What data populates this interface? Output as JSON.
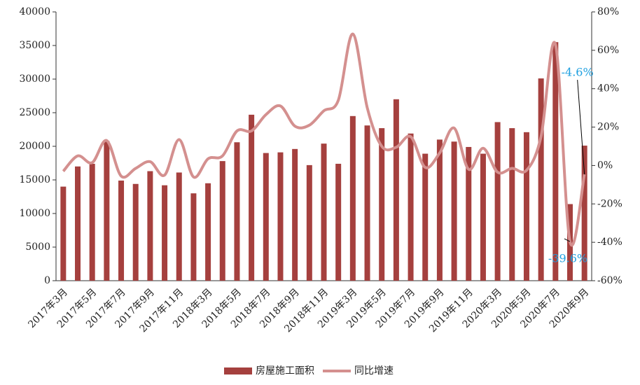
{
  "chart_data": {
    "type": "bar-line",
    "categories": [
      "2017年3月",
      null,
      "2017年5月",
      null,
      "2017年7月",
      null,
      "2017年9月",
      null,
      "2017年11月",
      null,
      "2018年3月",
      null,
      "2018年5月",
      null,
      "2018年7月",
      null,
      "2018年9月",
      null,
      "2018年11月",
      null,
      "2019年3月",
      null,
      "2019年5月",
      null,
      "2019年7月",
      null,
      "2019年9月",
      null,
      "2019年11月",
      null,
      "2020年3月",
      null,
      "2020年5月",
      null,
      "2020年7月",
      null,
      "2020年9月"
    ],
    "series": [
      {
        "name": "房屋施工面积",
        "type": "bar",
        "color": "#a5403e",
        "values": [
          14000,
          17000,
          17400,
          20800,
          14900,
          14400,
          16300,
          14200,
          16100,
          13000,
          14500,
          17800,
          20600,
          24700,
          19000,
          19100,
          19600,
          17200,
          20400,
          17400,
          24500,
          23100,
          22700,
          27000,
          21900,
          18900,
          21000,
          20700,
          19900,
          18900,
          23600,
          22700,
          22100,
          30100,
          35500,
          11400,
          20100
        ]
      },
      {
        "name": "同比增速",
        "type": "line",
        "axis": "y2",
        "color": "#d4908f",
        "values": [
          -3,
          5,
          1.5,
          13,
          -5.5,
          -1.5,
          2,
          -5,
          13.5,
          -6,
          3.5,
          5,
          18,
          18,
          26.5,
          31,
          20.5,
          21,
          28.5,
          34,
          68.5,
          30,
          10,
          9.5,
          15,
          -1,
          6.5,
          19.5,
          -2,
          9,
          -3.5,
          -1.5,
          -2.5,
          15,
          63,
          -39.6,
          -4.6
        ],
        "value_labels": [
          null,
          null,
          null,
          null,
          null,
          null,
          null,
          null,
          null,
          null,
          null,
          null,
          null,
          null,
          null,
          null,
          null,
          null,
          null,
          null,
          null,
          null,
          null,
          null,
          null,
          null,
          null,
          null,
          null,
          null,
          null,
          null,
          null,
          null,
          null,
          "-39.6%",
          "-4.6%"
        ],
        "label_color": "#1fa0e0"
      }
    ],
    "ylim": [
      0,
      40000
    ],
    "yticks": [
      0,
      5000,
      10000,
      15000,
      20000,
      25000,
      30000,
      35000,
      40000
    ],
    "y2lim": [
      -60,
      80
    ],
    "y2ticks": [
      {
        "value": -60,
        "label": "-60%"
      },
      {
        "value": -40,
        "label": "-40%"
      },
      {
        "value": -20,
        "label": "-20%"
      },
      {
        "value": 0,
        "label": "0%"
      },
      {
        "value": 20,
        "label": "20%"
      },
      {
        "value": 40,
        "label": "40%"
      },
      {
        "value": 60,
        "label": "60%"
      },
      {
        "value": 80,
        "label": "80%"
      }
    ],
    "legend": "bottom"
  }
}
